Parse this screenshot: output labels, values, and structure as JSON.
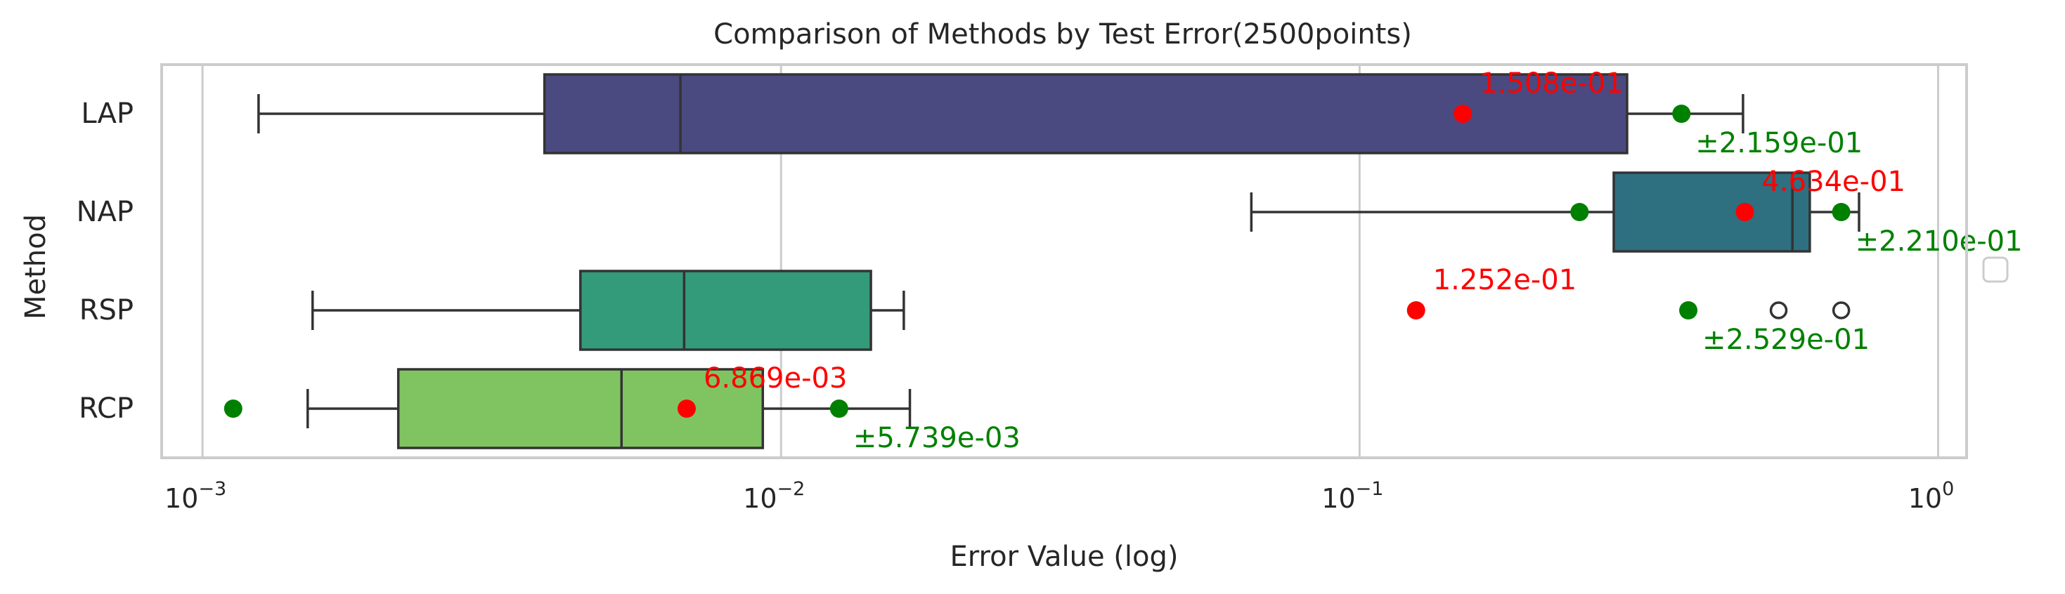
{
  "chart_data": {
    "type": "box",
    "title": "Comparison of Methods by Test Error(2500points)",
    "xlabel": "Error Value (log)",
    "ylabel": "Method",
    "xscale": "log",
    "xlim": [
      0.00085,
      1.12
    ],
    "xticks": [
      {
        "value": 0.001,
        "label": "10",
        "exp": "−3"
      },
      {
        "value": 0.01,
        "label": "10",
        "exp": "−2"
      },
      {
        "value": 0.1,
        "label": "10",
        "exp": "−1"
      },
      {
        "value": 1,
        "label": "10",
        "exp": "0"
      }
    ],
    "grid": true,
    "legend": "right (empty)",
    "categories": [
      "LAP",
      "NAP",
      "RSP",
      "RCP"
    ],
    "series": [
      {
        "category": "LAP",
        "color": "#4a4a80",
        "whisker_low": 0.00125,
        "q1": 0.0039,
        "median": 0.0067,
        "q3": 0.29,
        "whisker_high": 0.46,
        "outliers": [],
        "mean": 0.1508,
        "mean_label": "1.508e-01",
        "std_low": null,
        "std_high": 0.36,
        "std_label": "±2.159e-01"
      },
      {
        "category": "NAP",
        "color": "#2e6f80",
        "whisker_low": 0.065,
        "q1": 0.275,
        "median": 0.56,
        "q3": 0.6,
        "whisker_high": 0.73,
        "outliers": [],
        "mean": 0.4634,
        "mean_label": "4.634e-01",
        "std_low": 0.24,
        "std_high": 0.68,
        "std_label": "±2.210e-01"
      },
      {
        "category": "RSP",
        "color": "#339a7a",
        "whisker_low": 0.00155,
        "q1": 0.0045,
        "median": 0.0068,
        "q3": 0.0143,
        "whisker_high": 0.0163,
        "outliers": [
          0.53,
          0.68
        ],
        "mean": 0.1252,
        "mean_label": "1.252e-01",
        "std_low": null,
        "std_high": 0.37,
        "std_label": "±2.529e-01"
      },
      {
        "category": "RCP",
        "color": "#80c462",
        "whisker_low": 0.00152,
        "q1": 0.00218,
        "median": 0.0053,
        "q3": 0.0093,
        "whisker_high": 0.0167,
        "outliers": [],
        "mean": 0.006869,
        "mean_label": "6.869e-03",
        "std_low": 0.00113,
        "std_high": 0.0126,
        "std_label": "±5.739e-03"
      }
    ]
  },
  "colors": {
    "mean": "#ff0000",
    "std": "#008000",
    "box_edge": "#333333",
    "grid": "#cccccc",
    "frame": "#cccccc",
    "text": "#262626"
  }
}
